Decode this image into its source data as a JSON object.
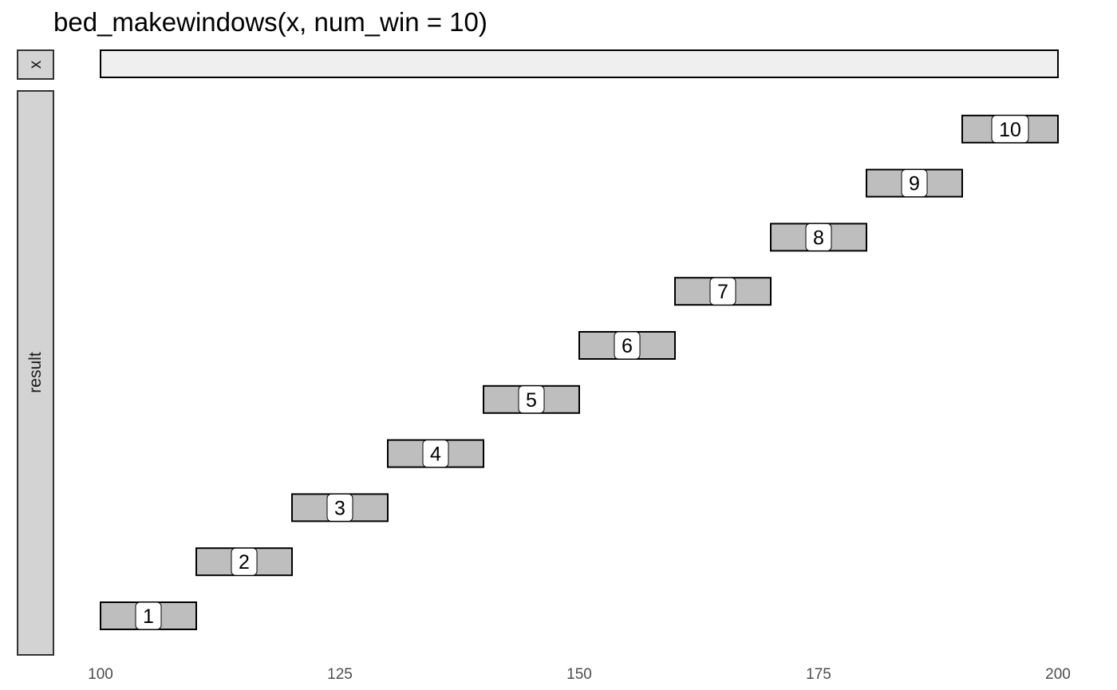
{
  "chart_data": {
    "type": "interval",
    "title": "bed_makewindows(x, num_win = 10)",
    "xlim": [
      100,
      200
    ],
    "x_ticks": [
      100,
      125,
      150,
      175,
      200
    ],
    "grid": false,
    "panels": [
      {
        "strip_label": "x",
        "intervals": [
          {
            "start": 100,
            "end": 200,
            "label": "",
            "fill": "#efefef"
          }
        ]
      },
      {
        "strip_label": "result",
        "intervals": [
          {
            "start": 100,
            "end": 110,
            "label": "1",
            "fill": "#bebebe"
          },
          {
            "start": 110,
            "end": 120,
            "label": "2",
            "fill": "#bebebe"
          },
          {
            "start": 120,
            "end": 130,
            "label": "3",
            "fill": "#bebebe"
          },
          {
            "start": 130,
            "end": 140,
            "label": "4",
            "fill": "#bebebe"
          },
          {
            "start": 140,
            "end": 150,
            "label": "5",
            "fill": "#bebebe"
          },
          {
            "start": 150,
            "end": 160,
            "label": "6",
            "fill": "#bebebe"
          },
          {
            "start": 160,
            "end": 170,
            "label": "7",
            "fill": "#bebebe"
          },
          {
            "start": 170,
            "end": 180,
            "label": "8",
            "fill": "#bebebe"
          },
          {
            "start": 180,
            "end": 190,
            "label": "9",
            "fill": "#bebebe"
          },
          {
            "start": 190,
            "end": 200,
            "label": "10",
            "fill": "#bebebe"
          }
        ]
      }
    ]
  }
}
